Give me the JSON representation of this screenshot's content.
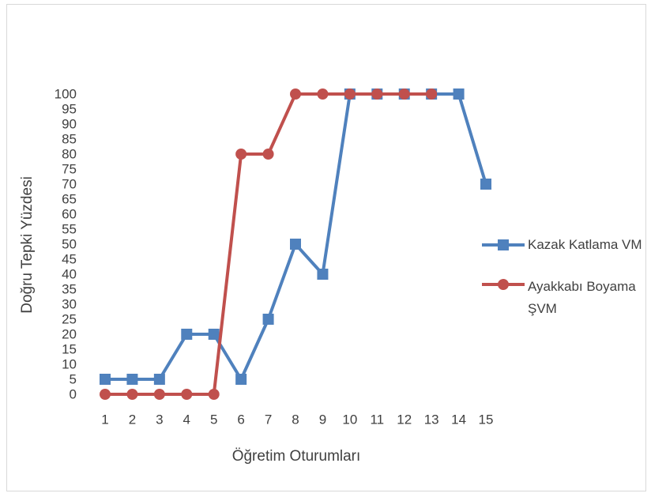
{
  "chart_data": {
    "type": "line",
    "x_label": "Öğretim Oturumları",
    "y_label": "Doğru Tepki Yüzdesi",
    "categories": [
      "1",
      "2",
      "3",
      "4",
      "5",
      "6",
      "7",
      "8",
      "9",
      "10",
      "11",
      "12",
      "13",
      "14",
      "15"
    ],
    "series": [
      {
        "name": "Kazak Katlama VM",
        "color": "#4f81bd",
        "marker": "square",
        "values": [
          5,
          5,
          5,
          20,
          20,
          5,
          25,
          50,
          40,
          100,
          100,
          100,
          100,
          100,
          70
        ]
      },
      {
        "name": "Ayakkabı Boyama ŞVM",
        "color": "#c0504d",
        "marker": "circle",
        "values": [
          0,
          0,
          0,
          0,
          0,
          80,
          80,
          100,
          100,
          100,
          100,
          100,
          100,
          null,
          null
        ]
      }
    ],
    "ylim": [
      0,
      100
    ],
    "yticks": [
      0,
      5,
      10,
      15,
      20,
      25,
      30,
      35,
      40,
      45,
      50,
      55,
      60,
      65,
      70,
      75,
      80,
      85,
      90,
      95,
      100
    ],
    "grid": false,
    "legend": "right"
  }
}
